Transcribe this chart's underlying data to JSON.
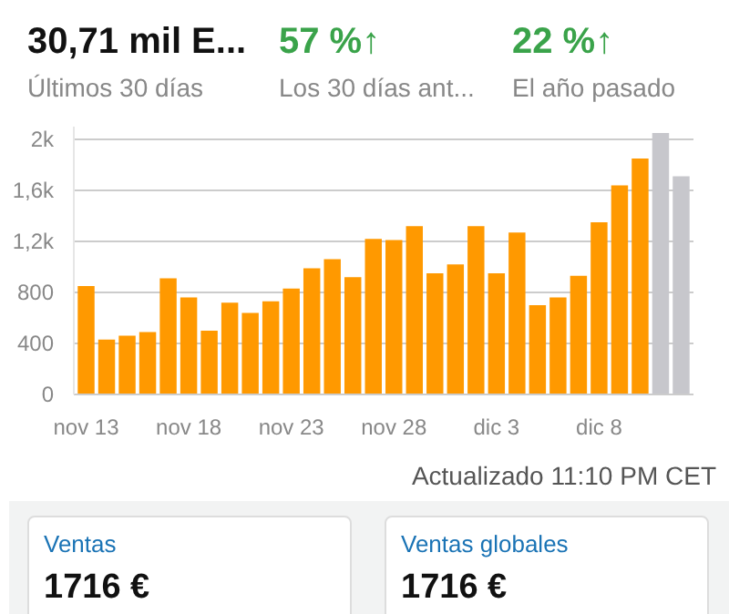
{
  "chart_data": {
    "type": "bar",
    "categories": [
      "nov 13",
      null,
      null,
      null,
      null,
      "nov 18",
      null,
      null,
      null,
      null,
      "nov 23",
      null,
      null,
      null,
      null,
      "nov 28",
      null,
      null,
      null,
      null,
      "dic 3",
      null,
      null,
      null,
      null,
      "dic 8",
      null,
      null,
      null,
      null
    ],
    "values": [
      850,
      430,
      460,
      490,
      910,
      760,
      500,
      720,
      640,
      730,
      830,
      990,
      1060,
      920,
      1220,
      1210,
      1320,
      950,
      1020,
      1320,
      950,
      1270,
      700,
      760,
      930,
      1350,
      1640,
      1850,
      2050,
      1710
    ],
    "colors": [
      "#ff9900",
      "#ff9900",
      "#ff9900",
      "#ff9900",
      "#ff9900",
      "#ff9900",
      "#ff9900",
      "#ff9900",
      "#ff9900",
      "#ff9900",
      "#ff9900",
      "#ff9900",
      "#ff9900",
      "#ff9900",
      "#ff9900",
      "#ff9900",
      "#ff9900",
      "#ff9900",
      "#ff9900",
      "#ff9900",
      "#ff9900",
      "#ff9900",
      "#ff9900",
      "#ff9900",
      "#ff9900",
      "#ff9900",
      "#ff9900",
      "#ff9900",
      "#c7c7cc",
      "#c7c7cc"
    ],
    "ylim": [
      0,
      2100
    ],
    "yticks": [
      0,
      400,
      800,
      {
        "value": 1200,
        "label": "1,2k"
      },
      {
        "value": 1600,
        "label": "1,6k"
      },
      {
        "value": 2000,
        "label": "2k"
      }
    ],
    "grid": "y",
    "annotations": [
      "30,71 mil E...",
      "Últimos 30 días",
      "57 %↑",
      "Los 30 días ant...",
      "22 %↑",
      "El año pasado",
      "Actualizado 11:10 PM CET",
      "Ventas",
      "1716 €",
      "Ventas globales",
      "1716 €"
    ]
  }
}
